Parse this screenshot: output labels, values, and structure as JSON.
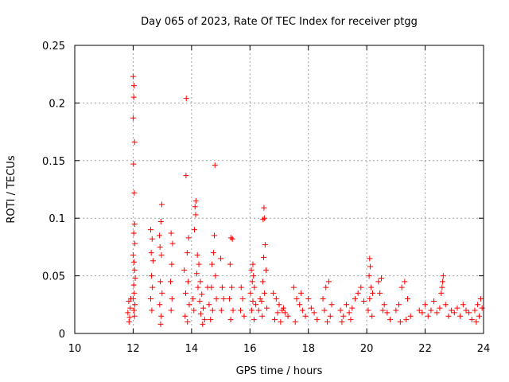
{
  "chart_data": {
    "type": "scatter",
    "title": "Day 065 of 2023, Rate Of TEC Index for receiver ptgg",
    "xlabel": "GPS time / hours",
    "ylabel": "ROTI / TECUs",
    "xlim": [
      10,
      24
    ],
    "ylim": [
      0,
      0.25
    ],
    "x_ticks": [
      10,
      12,
      14,
      16,
      18,
      20,
      22,
      24
    ],
    "x_tick_labels": [
      "10",
      "12",
      "14",
      "16",
      "18",
      "20",
      "22",
      "24"
    ],
    "y_ticks": [
      0,
      0.05,
      0.1,
      0.15,
      0.2,
      0.25
    ],
    "y_tick_labels": [
      "0",
      "0.05",
      "0.1",
      "0.15",
      "0.2",
      "0.25"
    ],
    "grid": true,
    "marker": "+",
    "marker_color": "#ff0000",
    "series": [
      {
        "name": "ROTI",
        "points": [
          [
            12.0,
            0.223
          ],
          [
            12.03,
            0.215
          ],
          [
            12.02,
            0.205
          ],
          [
            12.0,
            0.187
          ],
          [
            12.05,
            0.166
          ],
          [
            12.01,
            0.147
          ],
          [
            12.04,
            0.122
          ],
          [
            12.05,
            0.095
          ],
          [
            12.02,
            0.087
          ],
          [
            12.06,
            0.078
          ],
          [
            12.0,
            0.068
          ],
          [
            12.03,
            0.062
          ],
          [
            12.05,
            0.055
          ],
          [
            12.07,
            0.048
          ],
          [
            12.02,
            0.042
          ],
          [
            12.04,
            0.035
          ],
          [
            12.0,
            0.03
          ],
          [
            12.06,
            0.025
          ],
          [
            12.03,
            0.02
          ],
          [
            12.05,
            0.015
          ],
          [
            11.85,
            0.028
          ],
          [
            11.9,
            0.022
          ],
          [
            11.82,
            0.018
          ],
          [
            11.88,
            0.014
          ],
          [
            11.92,
            0.03
          ],
          [
            11.86,
            0.01
          ],
          [
            12.98,
            0.112
          ],
          [
            12.95,
            0.097
          ],
          [
            12.9,
            0.085
          ],
          [
            12.92,
            0.075
          ],
          [
            12.97,
            0.068
          ],
          [
            12.93,
            0.045
          ],
          [
            12.99,
            0.035
          ],
          [
            12.91,
            0.025
          ],
          [
            12.96,
            0.015
          ],
          [
            12.94,
            0.008
          ],
          [
            12.6,
            0.09
          ],
          [
            12.65,
            0.082
          ],
          [
            12.62,
            0.07
          ],
          [
            12.68,
            0.063
          ],
          [
            12.63,
            0.05
          ],
          [
            12.66,
            0.04
          ],
          [
            12.6,
            0.03
          ],
          [
            12.64,
            0.02
          ],
          [
            13.3,
            0.087
          ],
          [
            13.35,
            0.078
          ],
          [
            13.32,
            0.06
          ],
          [
            13.28,
            0.045
          ],
          [
            13.33,
            0.03
          ],
          [
            13.3,
            0.02
          ],
          [
            13.82,
            0.204
          ],
          [
            13.81,
            0.137
          ],
          [
            13.9,
            0.083
          ],
          [
            13.85,
            0.07
          ],
          [
            13.75,
            0.055
          ],
          [
            13.88,
            0.045
          ],
          [
            13.8,
            0.035
          ],
          [
            13.92,
            0.025
          ],
          [
            13.78,
            0.015
          ],
          [
            13.86,
            0.01
          ],
          [
            14.15,
            0.115
          ],
          [
            14.12,
            0.11
          ],
          [
            14.14,
            0.103
          ],
          [
            14.1,
            0.09
          ],
          [
            14.2,
            0.068
          ],
          [
            14.25,
            0.06
          ],
          [
            14.18,
            0.052
          ],
          [
            14.3,
            0.045
          ],
          [
            14.22,
            0.04
          ],
          [
            14.35,
            0.034
          ],
          [
            14.28,
            0.028
          ],
          [
            14.4,
            0.022
          ],
          [
            14.32,
            0.017
          ],
          [
            14.45,
            0.012
          ],
          [
            14.38,
            0.008
          ],
          [
            14.05,
            0.03
          ],
          [
            14.08,
            0.02
          ],
          [
            14.8,
            0.146
          ],
          [
            14.78,
            0.085
          ],
          [
            14.75,
            0.07
          ],
          [
            14.7,
            0.06
          ],
          [
            14.82,
            0.05
          ],
          [
            14.68,
            0.04
          ],
          [
            14.85,
            0.03
          ],
          [
            14.72,
            0.02
          ],
          [
            14.65,
            0.012
          ],
          [
            14.55,
            0.04
          ],
          [
            14.6,
            0.025
          ],
          [
            15.0,
            0.065
          ],
          [
            15.05,
            0.04
          ],
          [
            15.1,
            0.03
          ],
          [
            15.02,
            0.02
          ],
          [
            15.35,
            0.083
          ],
          [
            15.4,
            0.082
          ],
          [
            15.32,
            0.06
          ],
          [
            15.38,
            0.04
          ],
          [
            15.3,
            0.03
          ],
          [
            15.42,
            0.02
          ],
          [
            15.34,
            0.012
          ],
          [
            15.7,
            0.04
          ],
          [
            15.75,
            0.03
          ],
          [
            15.68,
            0.02
          ],
          [
            15.8,
            0.015
          ],
          [
            16.1,
            0.06
          ],
          [
            16.05,
            0.055
          ],
          [
            16.12,
            0.05
          ],
          [
            16.08,
            0.045
          ],
          [
            16.15,
            0.04
          ],
          [
            16.02,
            0.035
          ],
          [
            16.1,
            0.028
          ],
          [
            16.06,
            0.02
          ],
          [
            16.14,
            0.012
          ],
          [
            16.2,
            0.025
          ],
          [
            16.48,
            0.109
          ],
          [
            16.5,
            0.1
          ],
          [
            16.45,
            0.099
          ],
          [
            16.52,
            0.077
          ],
          [
            16.47,
            0.066
          ],
          [
            16.55,
            0.055
          ],
          [
            16.44,
            0.045
          ],
          [
            16.5,
            0.035
          ],
          [
            16.4,
            0.028
          ],
          [
            16.58,
            0.022
          ],
          [
            16.42,
            0.015
          ],
          [
            16.35,
            0.03
          ],
          [
            16.3,
            0.02
          ],
          [
            16.8,
            0.035
          ],
          [
            16.9,
            0.03
          ],
          [
            17.0,
            0.025
          ],
          [
            17.1,
            0.02
          ],
          [
            17.2,
            0.018
          ],
          [
            17.3,
            0.015
          ],
          [
            16.85,
            0.012
          ],
          [
            17.05,
            0.01
          ],
          [
            17.15,
            0.022
          ],
          [
            16.95,
            0.018
          ],
          [
            17.5,
            0.04
          ],
          [
            17.6,
            0.03
          ],
          [
            17.7,
            0.025
          ],
          [
            17.8,
            0.02
          ],
          [
            17.9,
            0.015
          ],
          [
            18.0,
            0.03
          ],
          [
            18.1,
            0.022
          ],
          [
            18.2,
            0.018
          ],
          [
            18.3,
            0.012
          ],
          [
            17.55,
            0.01
          ],
          [
            17.75,
            0.035
          ],
          [
            18.5,
            0.03
          ],
          [
            18.6,
            0.04
          ],
          [
            18.7,
            0.045
          ],
          [
            18.8,
            0.025
          ],
          [
            18.55,
            0.02
          ],
          [
            18.75,
            0.015
          ],
          [
            18.65,
            0.01
          ],
          [
            19.1,
            0.02
          ],
          [
            19.2,
            0.015
          ],
          [
            19.3,
            0.025
          ],
          [
            19.4,
            0.018
          ],
          [
            19.5,
            0.022
          ],
          [
            19.6,
            0.03
          ],
          [
            19.7,
            0.035
          ],
          [
            19.8,
            0.04
          ],
          [
            19.9,
            0.028
          ],
          [
            19.15,
            0.01
          ],
          [
            19.45,
            0.012
          ],
          [
            20.1,
            0.065
          ],
          [
            20.12,
            0.058
          ],
          [
            20.08,
            0.05
          ],
          [
            20.15,
            0.04
          ],
          [
            20.2,
            0.035
          ],
          [
            20.1,
            0.03
          ],
          [
            20.05,
            0.02
          ],
          [
            20.18,
            0.015
          ],
          [
            20.4,
            0.045
          ],
          [
            20.5,
            0.048
          ],
          [
            20.45,
            0.035
          ],
          [
            20.6,
            0.025
          ],
          [
            20.7,
            0.018
          ],
          [
            20.8,
            0.012
          ],
          [
            20.55,
            0.02
          ],
          [
            21.0,
            0.02
          ],
          [
            21.1,
            0.025
          ],
          [
            21.2,
            0.04
          ],
          [
            21.3,
            0.045
          ],
          [
            21.4,
            0.03
          ],
          [
            21.5,
            0.015
          ],
          [
            21.15,
            0.01
          ],
          [
            21.35,
            0.012
          ],
          [
            21.8,
            0.02
          ],
          [
            21.9,
            0.018
          ],
          [
            22.0,
            0.025
          ],
          [
            22.1,
            0.015
          ],
          [
            22.2,
            0.02
          ],
          [
            22.3,
            0.028
          ],
          [
            22.4,
            0.018
          ],
          [
            22.5,
            0.022
          ],
          [
            22.55,
            0.035
          ],
          [
            22.6,
            0.045
          ],
          [
            22.62,
            0.05
          ],
          [
            22.58,
            0.04
          ],
          [
            22.7,
            0.025
          ],
          [
            22.8,
            0.015
          ],
          [
            22.9,
            0.02
          ],
          [
            23.0,
            0.018
          ],
          [
            23.1,
            0.022
          ],
          [
            23.2,
            0.015
          ],
          [
            23.3,
            0.025
          ],
          [
            23.4,
            0.02
          ],
          [
            23.5,
            0.018
          ],
          [
            23.6,
            0.012
          ],
          [
            23.7,
            0.02
          ],
          [
            23.8,
            0.025
          ],
          [
            23.9,
            0.03
          ],
          [
            23.95,
            0.022
          ],
          [
            23.85,
            0.015
          ],
          [
            23.75,
            0.01
          ]
        ]
      }
    ]
  }
}
